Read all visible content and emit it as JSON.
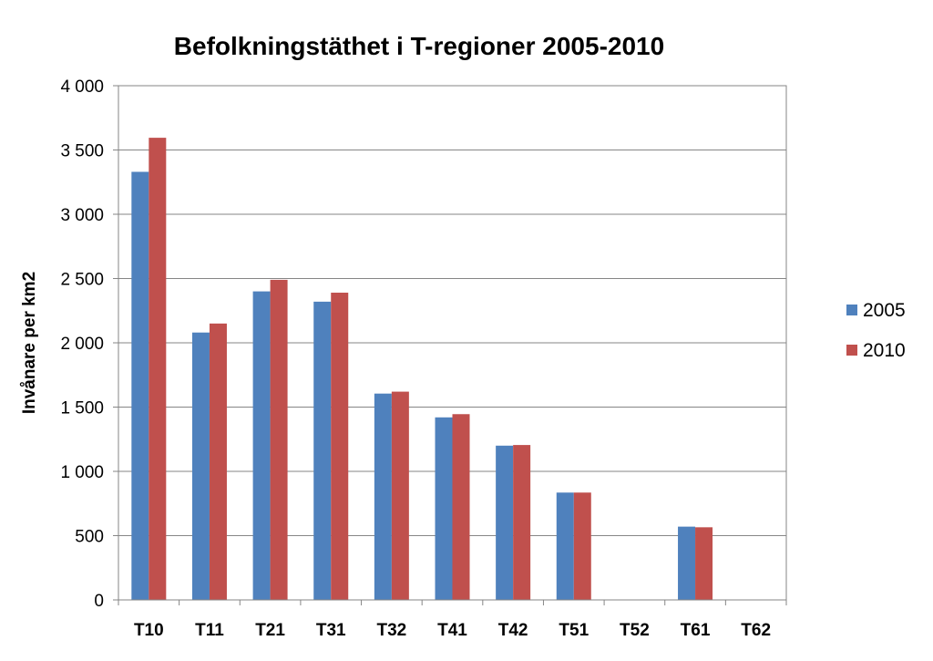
{
  "chart_data": {
    "type": "bar",
    "title": "Befolkningstäthet i T-regioner 2005-2010",
    "xlabel": "",
    "ylabel": "Invånare per km2",
    "categories": [
      "T10",
      "T11",
      "T21",
      "T31",
      "T32",
      "T41",
      "T42",
      "T51",
      "T52",
      "T61",
      "T62"
    ],
    "series": [
      {
        "name": "2005",
        "color": "#4F81BD",
        "values": [
          3330,
          2080,
          2400,
          2320,
          1605,
          1420,
          1200,
          835,
          0,
          570,
          0
        ]
      },
      {
        "name": "2010",
        "color": "#C0504D",
        "values": [
          3595,
          2150,
          2490,
          2390,
          1620,
          1445,
          1205,
          835,
          0,
          565,
          0
        ]
      }
    ],
    "ylim": [
      0,
      4000
    ],
    "yticks": [
      0,
      500,
      1000,
      1500,
      2000,
      2500,
      3000,
      3500,
      4000
    ],
    "ytick_labels": [
      "0",
      "500",
      "1 000",
      "1 500",
      "2 000",
      "2 500",
      "3 000",
      "3 500",
      "4 000"
    ],
    "grid": true,
    "legend_position": "right"
  }
}
